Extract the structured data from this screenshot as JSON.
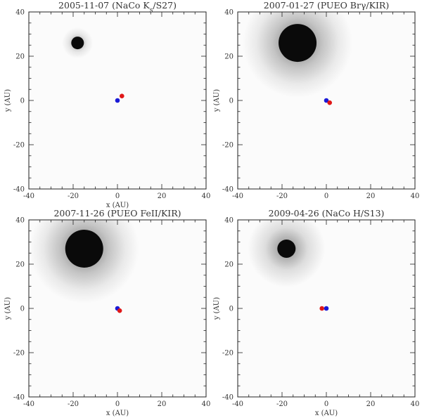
{
  "chart_data": [
    {
      "type": "image",
      "title": "2005-11-07 (NaCo K",
      "title_sub": "s",
      "title_tail": "/S27)",
      "xlabel": "x (AU)",
      "ylabel": "y (AU)",
      "xlim": [
        -40,
        40
      ],
      "ylim": [
        -40,
        40
      ],
      "xticks": [
        "-40",
        "-20",
        "0",
        "20",
        "40"
      ],
      "yticks": [
        "-40",
        "-20",
        "0",
        "20",
        "40"
      ],
      "source": {
        "x": -18,
        "y": 26,
        "size": "small"
      },
      "markers": [
        {
          "color": "#1a1ad6",
          "x": 0,
          "y": 0
        },
        {
          "color": "#e01818",
          "x": 2,
          "y": 2
        }
      ]
    },
    {
      "type": "image",
      "title": "2007-01-27 (PUEO Brγ/KIR)",
      "xlabel": "",
      "ylabel": "y (AU)",
      "xlim": [
        -40,
        40
      ],
      "ylim": [
        -40,
        40
      ],
      "xticks": [
        "-40",
        "-20",
        "0",
        "20",
        "40"
      ],
      "yticks": [
        "-40",
        "-20",
        "0",
        "20",
        "40"
      ],
      "source": {
        "x": -13,
        "y": 26,
        "size": "large"
      },
      "markers": [
        {
          "color": "#1a1ad6",
          "x": 0,
          "y": 0
        },
        {
          "color": "#e01818",
          "x": 1.5,
          "y": -1
        }
      ]
    },
    {
      "type": "image",
      "title": "2007-11-26 (PUEO FeII/KIR)",
      "xlabel": "x (AU)",
      "ylabel": "y (AU)",
      "xlim": [
        -40,
        40
      ],
      "ylim": [
        -40,
        40
      ],
      "xticks": [
        "-40",
        "-20",
        "0",
        "20",
        "40"
      ],
      "yticks": [
        "-40",
        "-20",
        "0",
        "20",
        "40"
      ],
      "source": {
        "x": -15,
        "y": 27,
        "size": "large"
      },
      "markers": [
        {
          "color": "#1a1ad6",
          "x": 0,
          "y": 0
        },
        {
          "color": "#e01818",
          "x": 1,
          "y": -1
        }
      ]
    },
    {
      "type": "image",
      "title": "2009-04-26 (NaCo H/S13)",
      "xlabel": "x (AU)",
      "ylabel": "y (AU)",
      "xlim": [
        -40,
        40
      ],
      "ylim": [
        -40,
        40
      ],
      "xticks": [
        "-40",
        "-20",
        "0",
        "20",
        "40"
      ],
      "yticks": [
        "-40",
        "-20",
        "0",
        "20",
        "40"
      ],
      "source": {
        "x": -18,
        "y": 27,
        "size": "medium"
      },
      "markers": [
        {
          "color": "#e01818",
          "x": -2,
          "y": 0
        },
        {
          "color": "#1a1ad6",
          "x": 0,
          "y": 0
        }
      ]
    }
  ]
}
